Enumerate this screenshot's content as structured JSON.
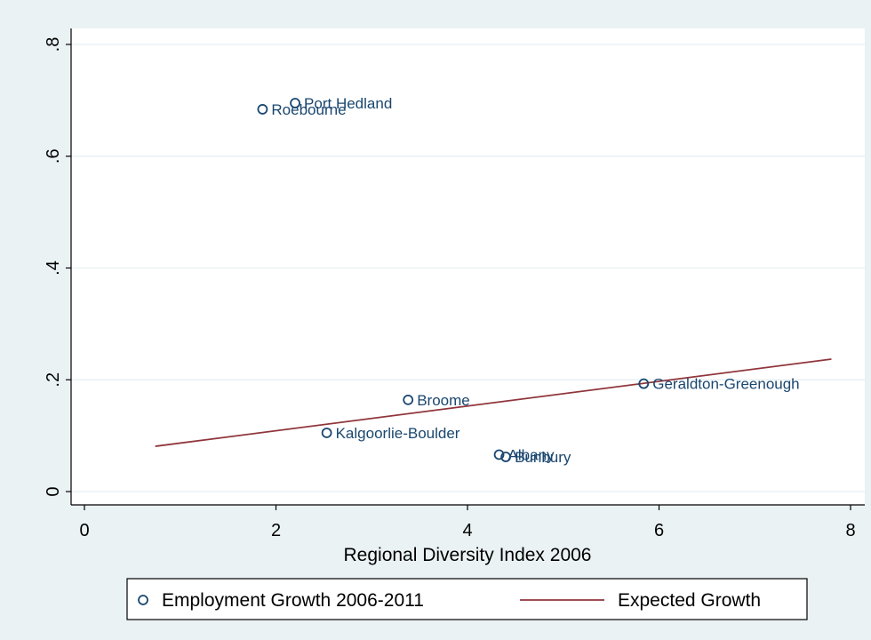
{
  "chart_data": {
    "type": "scatter",
    "title": "",
    "xlabel": "Regional Diversity Index 2006",
    "ylabel": "",
    "xlim": [
      0,
      8
    ],
    "ylim": [
      0,
      0.8
    ],
    "xticks": [
      0,
      2,
      4,
      6,
      8
    ],
    "xtick_labels": [
      "0",
      "2",
      "4",
      "6",
      "8"
    ],
    "yticks": [
      0,
      0.2,
      0.4,
      0.6,
      0.8
    ],
    "ytick_labels": [
      "0",
      ".2",
      ".4",
      ".6",
      ".8"
    ],
    "grid": "horizontal",
    "legend_position": "bottom",
    "series": [
      {
        "name": "Employment Growth 2006-2011",
        "kind": "scatter",
        "color": "#1a476f",
        "points": [
          {
            "label": "Port Hedland",
            "x": 2.2,
            "y": 0.695
          },
          {
            "label": "Roebourne",
            "x": 1.86,
            "y": 0.684
          },
          {
            "label": "Geraldton-Greenough",
            "x": 5.84,
            "y": 0.193
          },
          {
            "label": "Broome",
            "x": 3.38,
            "y": 0.164
          },
          {
            "label": "Kalgoorlie-Boulder",
            "x": 2.53,
            "y": 0.105
          },
          {
            "label": "Albany",
            "x": 4.33,
            "y": 0.066
          },
          {
            "label": "Bunbury",
            "x": 4.4,
            "y": 0.062
          }
        ]
      },
      {
        "name": "Expected Growth",
        "kind": "line",
        "color": "#90353b",
        "x": [
          0.74,
          7.8
        ],
        "y": [
          0.081,
          0.237
        ]
      }
    ]
  }
}
